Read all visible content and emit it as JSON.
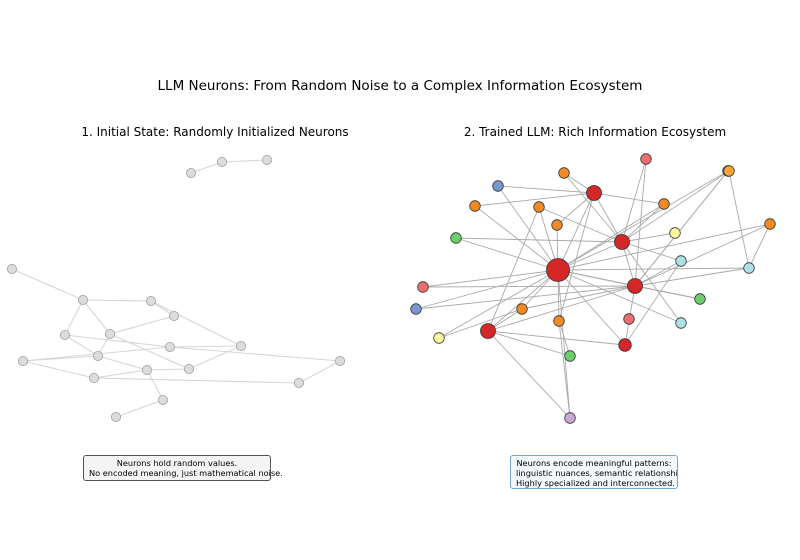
{
  "title": "LLM Neurons: From Random Noise to a Complex Information Ecosystem",
  "panels": [
    {
      "title": "1. Initial State: Randomly Initialized Neurons",
      "note_lines": [
        "Neurons hold random values.",
        "No encoded meaning, just mathematical noise."
      ],
      "colors": {
        "node": "#dcdcdc",
        "edge": "#d6d6d6"
      },
      "nodes": [
        {
          "id": "a1",
          "cat": "gray"
        },
        {
          "id": "a2",
          "cat": "gray"
        },
        {
          "id": "a3",
          "cat": "gray"
        },
        {
          "id": "b1",
          "cat": "gray"
        },
        {
          "id": "b2",
          "cat": "gray"
        },
        {
          "id": "b3",
          "cat": "gray"
        },
        {
          "id": "b4",
          "cat": "gray"
        },
        {
          "id": "b5",
          "cat": "gray"
        },
        {
          "id": "b6",
          "cat": "gray"
        },
        {
          "id": "b7",
          "cat": "gray"
        },
        {
          "id": "b8",
          "cat": "gray"
        },
        {
          "id": "b9",
          "cat": "gray"
        },
        {
          "id": "b10",
          "cat": "gray"
        },
        {
          "id": "b11",
          "cat": "gray"
        },
        {
          "id": "b12",
          "cat": "gray"
        },
        {
          "id": "b13",
          "cat": "gray"
        },
        {
          "id": "b14",
          "cat": "gray"
        },
        {
          "id": "b15",
          "cat": "gray"
        },
        {
          "id": "b16",
          "cat": "gray"
        },
        {
          "id": "b17",
          "cat": "gray"
        }
      ],
      "edges": [
        [
          "a1",
          "a2"
        ],
        [
          "a2",
          "a3"
        ],
        [
          "b1",
          "b2"
        ],
        [
          "b2",
          "b3"
        ],
        [
          "b2",
          "b4"
        ],
        [
          "b2",
          "b6"
        ],
        [
          "b3",
          "b5"
        ],
        [
          "b3",
          "b8"
        ],
        [
          "b4",
          "b7"
        ],
        [
          "b4",
          "b9"
        ],
        [
          "b5",
          "b6"
        ],
        [
          "b6",
          "b7"
        ],
        [
          "b6",
          "b10"
        ],
        [
          "b7",
          "b11"
        ],
        [
          "b7",
          "b12"
        ],
        [
          "b8",
          "b10"
        ],
        [
          "b8",
          "b9"
        ],
        [
          "b9",
          "b12"
        ],
        [
          "b9",
          "b13"
        ],
        [
          "b10",
          "b11"
        ],
        [
          "b11",
          "b16"
        ],
        [
          "b11",
          "b14"
        ],
        [
          "b12",
          "b14"
        ],
        [
          "b13",
          "b15"
        ],
        [
          "b14",
          "b15"
        ],
        [
          "b16",
          "b17"
        ]
      ]
    },
    {
      "title": "2. Trained LLM: Rich Information Ecosystem",
      "note_lines": [
        "Neurons encode meaningful patterns:",
        "linguistic nuances, semantic relationships.",
        "Highly specialized and interconnected."
      ],
      "colors": {
        "edge": "#a9a9a9",
        "hub": "#d62728",
        "salmon": "#ee6e6e",
        "orange": "#f08a24",
        "lightorange": "#f6a43a",
        "blue": "#7a96d0",
        "green": "#6ccf6c",
        "yellow": "#fdfa9e",
        "cyan": "#aee1e6",
        "purple": "#c9a9d4"
      },
      "nodes": [
        {
          "id": "H1",
          "cat": "hub",
          "size": "large"
        },
        {
          "id": "H2",
          "cat": "hub"
        },
        {
          "id": "H3",
          "cat": "hub"
        },
        {
          "id": "H4",
          "cat": "hub"
        },
        {
          "id": "H5",
          "cat": "hub"
        },
        {
          "id": "H6",
          "cat": "hub",
          "size": "small"
        },
        {
          "id": "S1",
          "cat": "salmon"
        },
        {
          "id": "S2",
          "cat": "salmon"
        },
        {
          "id": "S3",
          "cat": "salmon"
        },
        {
          "id": "O1",
          "cat": "orange"
        },
        {
          "id": "O2",
          "cat": "orange"
        },
        {
          "id": "O3",
          "cat": "orange"
        },
        {
          "id": "O4",
          "cat": "orange"
        },
        {
          "id": "O5",
          "cat": "orange"
        },
        {
          "id": "O6",
          "cat": "orange"
        },
        {
          "id": "O7",
          "cat": "orange"
        },
        {
          "id": "O8",
          "cat": "orange"
        },
        {
          "id": "O9",
          "cat": "orange"
        },
        {
          "id": "O10",
          "cat": "lightorange"
        },
        {
          "id": "B1",
          "cat": "blue"
        },
        {
          "id": "B2",
          "cat": "blue"
        },
        {
          "id": "G1",
          "cat": "green"
        },
        {
          "id": "G2",
          "cat": "green"
        },
        {
          "id": "G3",
          "cat": "green"
        },
        {
          "id": "Y1",
          "cat": "yellow"
        },
        {
          "id": "Y2",
          "cat": "yellow"
        },
        {
          "id": "C1",
          "cat": "cyan"
        },
        {
          "id": "C2",
          "cat": "cyan"
        },
        {
          "id": "C3",
          "cat": "cyan"
        },
        {
          "id": "P1",
          "cat": "purple"
        }
      ],
      "edges": [
        [
          "H1",
          "B1"
        ],
        [
          "H1",
          "O2"
        ],
        [
          "H1",
          "O3"
        ],
        [
          "H1",
          "O4"
        ],
        [
          "H1",
          "O5"
        ],
        [
          "H1",
          "H2"
        ],
        [
          "H1",
          "H3"
        ],
        [
          "H1",
          "H4"
        ],
        [
          "H1",
          "G1"
        ],
        [
          "H1",
          "S2"
        ],
        [
          "H1",
          "B2"
        ],
        [
          "H1",
          "O6"
        ],
        [
          "H1",
          "O8"
        ],
        [
          "H1",
          "O9"
        ],
        [
          "H1",
          "H6"
        ],
        [
          "H1",
          "C2"
        ],
        [
          "H1",
          "G2"
        ],
        [
          "H1",
          "Y2"
        ],
        [
          "H1",
          "O7"
        ],
        [
          "H1",
          "H5"
        ],
        [
          "H1",
          "P1"
        ],
        [
          "H1",
          "C3"
        ],
        [
          "H2",
          "O1"
        ],
        [
          "H2",
          "O2"
        ],
        [
          "H2",
          "B1"
        ],
        [
          "H2",
          "O4"
        ],
        [
          "H2",
          "O7"
        ],
        [
          "H3",
          "S1"
        ],
        [
          "H3",
          "O1"
        ],
        [
          "H3",
          "O3"
        ],
        [
          "H3",
          "Y1"
        ],
        [
          "H3",
          "C1"
        ],
        [
          "H3",
          "O10"
        ],
        [
          "H3",
          "O5"
        ],
        [
          "H3",
          "G1"
        ],
        [
          "H3",
          "C3"
        ],
        [
          "H4",
          "H3"
        ],
        [
          "H4",
          "C1"
        ],
        [
          "H4",
          "C2"
        ],
        [
          "H4",
          "G2"
        ],
        [
          "H4",
          "H6"
        ],
        [
          "H4",
          "O8"
        ],
        [
          "H4",
          "H5"
        ],
        [
          "H4",
          "S1"
        ],
        [
          "H4",
          "O9"
        ],
        [
          "H5",
          "O6"
        ],
        [
          "H5",
          "H6"
        ],
        [
          "H5",
          "P1"
        ],
        [
          "H5",
          "G3"
        ],
        [
          "H6",
          "C1"
        ],
        [
          "O9",
          "C2"
        ],
        [
          "O10",
          "C2"
        ],
        [
          "H2",
          "O5"
        ],
        [
          "S2",
          "H4"
        ],
        [
          "B2",
          "H4"
        ],
        [
          "Y2",
          "O6"
        ],
        [
          "G3",
          "O7"
        ],
        [
          "O7",
          "P1"
        ],
        [
          "O8",
          "H4"
        ],
        [
          "H4",
          "O6"
        ],
        [
          "H2",
          "H3"
        ],
        [
          "O3",
          "H5"
        ]
      ]
    }
  ]
}
